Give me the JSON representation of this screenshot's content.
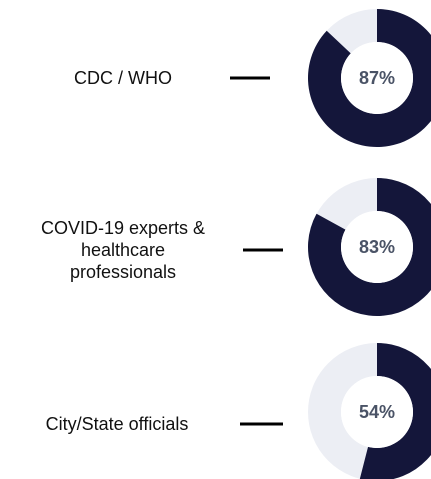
{
  "chart_data": {
    "type": "donut",
    "categories": [
      "CDC / WHO",
      "COVID-19 experts & healthcare professionals",
      "City/State officials"
    ],
    "values": [
      87,
      83,
      54
    ],
    "value_labels": [
      "87%",
      "83%",
      "54%"
    ],
    "color": "#14163a",
    "track_color": "#eceef4"
  }
}
